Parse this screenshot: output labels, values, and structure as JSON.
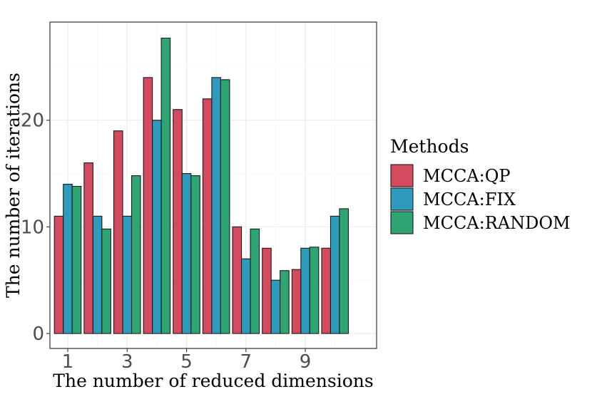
{
  "chart_data": {
    "type": "bar",
    "xlabel": "The number of reduced dimensions",
    "ylabel": "The number of iterations",
    "categories": [
      1,
      2,
      3,
      4,
      5,
      6,
      7,
      8,
      9,
      10
    ],
    "x_tick_labels": [
      "1",
      "3",
      "5",
      "7",
      "9"
    ],
    "x_tick_values": [
      1,
      3,
      5,
      7,
      9
    ],
    "y_tick_labels": [
      "0",
      "10",
      "20"
    ],
    "y_tick_values": [
      0,
      10,
      20
    ],
    "ylim": [
      -1.4,
      29.2
    ],
    "xlim": [
      0.4,
      11.4
    ],
    "grid": true,
    "legend": {
      "title": "Methods",
      "position": "right"
    },
    "series": [
      {
        "name": "MCCA:QP",
        "color": "#d44a5e",
        "values": [
          11,
          16,
          19,
          24,
          21,
          22,
          10,
          8,
          6,
          8
        ]
      },
      {
        "name": "MCCA:FIX",
        "color": "#2e9bbd",
        "values": [
          14,
          11,
          11,
          20,
          15,
          24,
          7,
          5,
          8,
          11
        ]
      },
      {
        "name": "MCCA:RANDOM",
        "color": "#2ea673",
        "values": [
          13.8,
          9.8,
          14.8,
          27.7,
          14.8,
          23.8,
          9.8,
          5.9,
          8.1,
          11.7
        ]
      }
    ]
  }
}
